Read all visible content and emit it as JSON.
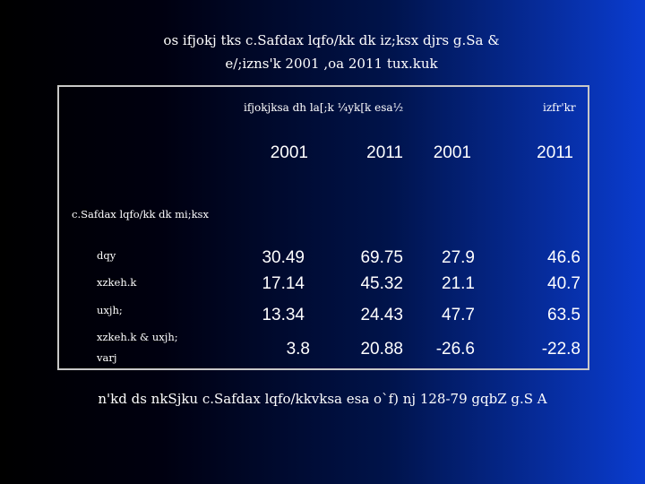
{
  "title_line1": "os ifjokj tks c.Safdax lqfo/kk dk iz;ksx djrs g.Sa &",
  "title_line2": "e/;izns'k 2001 ,oa 2011 tux.kuk",
  "table": {
    "group_header_1": "ifjokjksa dh la[;k ¼yk[k esa½",
    "group_header_2": "izfr'kr",
    "years": [
      "2001",
      "2011",
      "2001",
      "2011"
    ],
    "section_label": "c.Safdax lqfo/kk dk mi;ksx",
    "rows": [
      {
        "label": "dqy",
        "values": [
          "30.49",
          "69.75",
          "27.9",
          "46.6"
        ]
      },
      {
        "label": "xzkeh.k",
        "values": [
          "17.14",
          "45.32",
          "21.1",
          "40.7"
        ]
      },
      {
        "label": "uxjh;",
        "values": [
          "13.34",
          "24.43",
          "47.7",
          "63.5"
        ]
      },
      {
        "label": "xzkeh.k & uxjh;",
        "label2": "varj",
        "values": [
          "3.8",
          "20.88",
          "-26.6",
          "-22.8"
        ]
      }
    ]
  },
  "footer": "n'kd ds nkSjku c.Safdax lqfo/kkvksa esa o`f) nj 128-79 gqbZ g.S A"
}
